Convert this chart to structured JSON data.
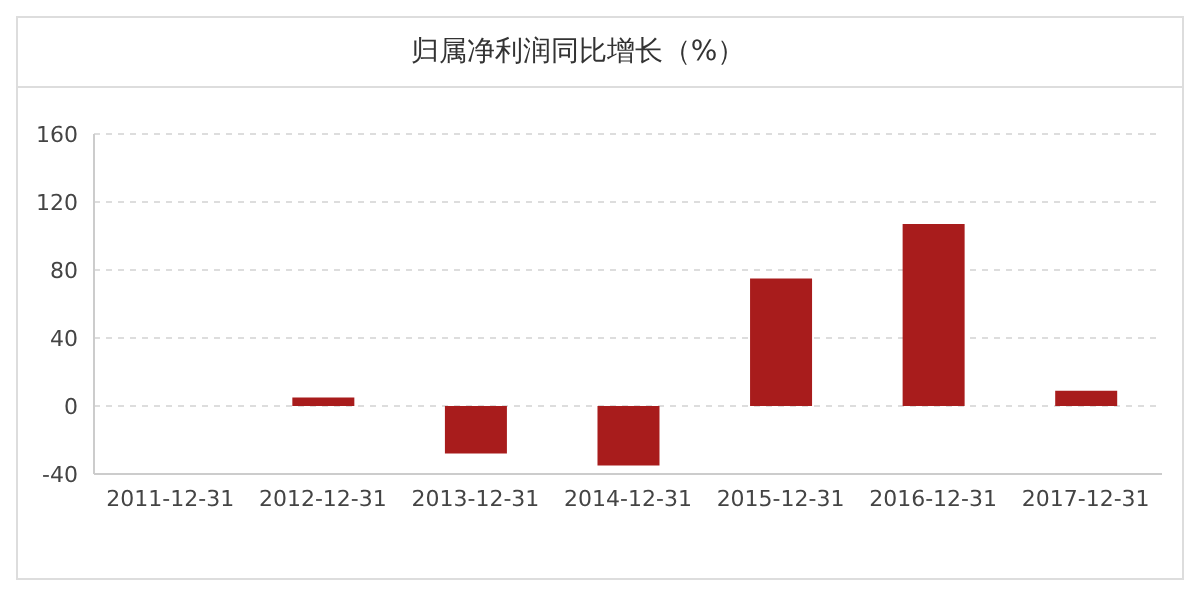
{
  "chart_data": {
    "type": "bar",
    "title": "归属净利润同比增长（%）",
    "categories": [
      "2011-12-31",
      "2012-12-31",
      "2013-12-31",
      "2014-12-31",
      "2015-12-31",
      "2016-12-31",
      "2017-12-31"
    ],
    "values": [
      null,
      5,
      -28,
      -35,
      75,
      107,
      9
    ],
    "color": "#a81c1c",
    "ylim": [
      -40,
      160
    ],
    "yticks": [
      -40,
      0,
      40,
      80,
      120,
      160
    ],
    "grid": "y"
  }
}
